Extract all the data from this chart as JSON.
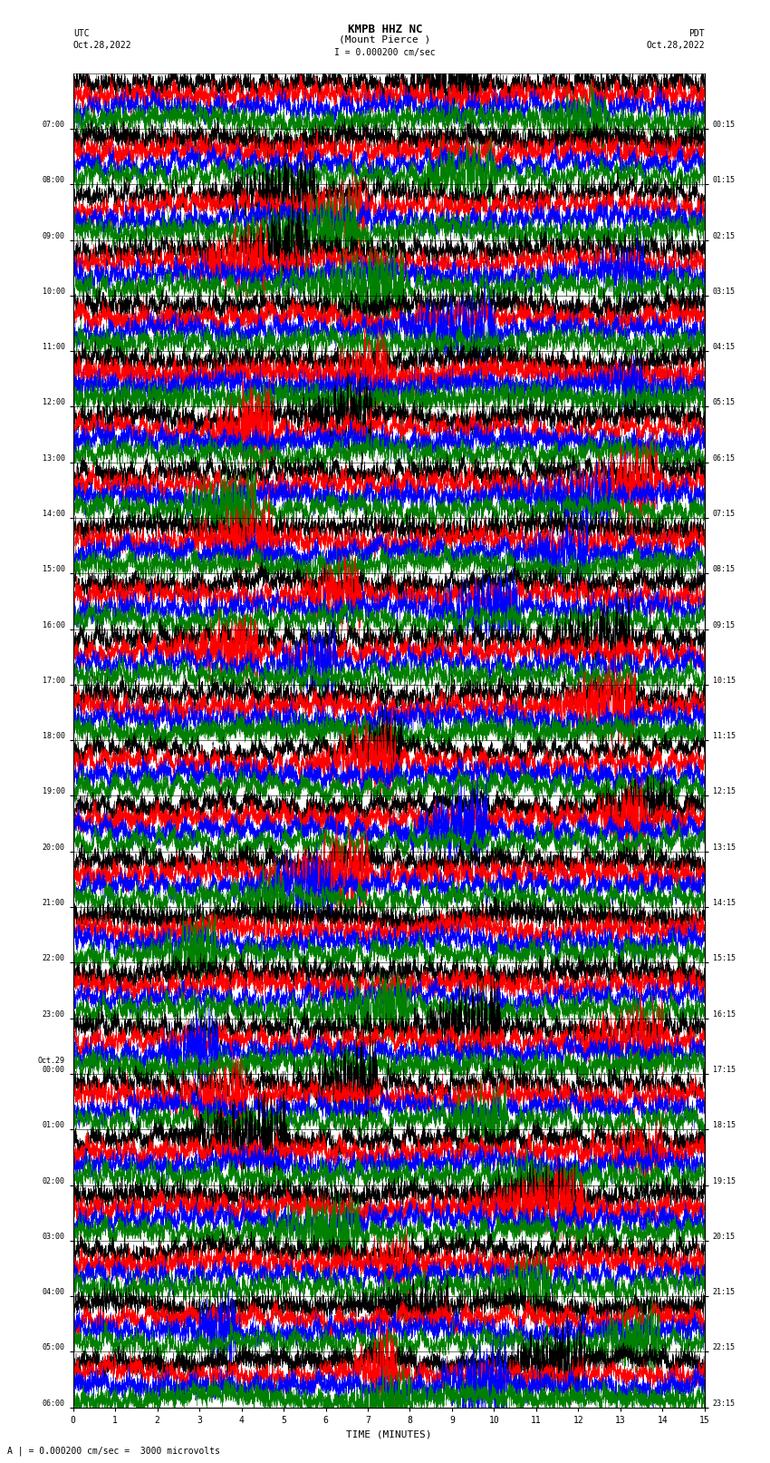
{
  "title_line1": "KMPB HHZ NC",
  "title_line2": "(Mount Pierce )",
  "scale_label": "I = 0.000200 cm/sec",
  "left_label": "UTC",
  "left_date": "Oct.28,2022",
  "right_label": "PDT",
  "right_date": "Oct.28,2022",
  "bottom_label": "TIME (MINUTES)",
  "bottom_note": "A | = 0.000200 cm/sec =  3000 microvolts",
  "left_times": [
    "07:00",
    "08:00",
    "09:00",
    "10:00",
    "11:00",
    "12:00",
    "13:00",
    "14:00",
    "15:00",
    "16:00",
    "17:00",
    "18:00",
    "19:00",
    "20:00",
    "21:00",
    "22:00",
    "23:00",
    "Oct.29\n00:00",
    "01:00",
    "02:00",
    "03:00",
    "04:00",
    "05:00",
    "06:00"
  ],
  "right_times": [
    "00:15",
    "01:15",
    "02:15",
    "03:15",
    "04:15",
    "05:15",
    "06:15",
    "07:15",
    "08:15",
    "09:15",
    "10:15",
    "11:15",
    "12:15",
    "13:15",
    "14:15",
    "15:15",
    "16:15",
    "17:15",
    "18:15",
    "19:15",
    "20:15",
    "21:15",
    "22:15",
    "23:15"
  ],
  "n_rows": 24,
  "n_cols": 4,
  "colors": [
    "black",
    "red",
    "blue",
    "green"
  ],
  "x_ticks": [
    0,
    1,
    2,
    3,
    4,
    5,
    6,
    7,
    8,
    9,
    10,
    11,
    12,
    13,
    14,
    15
  ],
  "fig_width": 8.5,
  "fig_height": 16.13,
  "dpi": 100,
  "background": "white",
  "trace_amp": 0.11,
  "n_points": 9000,
  "lw": 0.25
}
